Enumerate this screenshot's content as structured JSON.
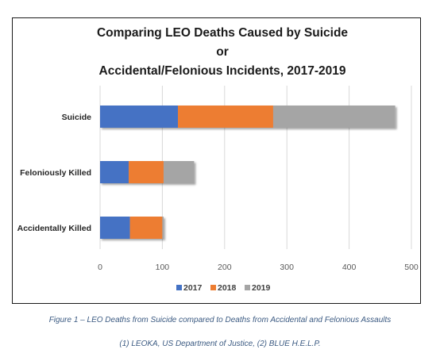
{
  "chart_data": {
    "type": "bar",
    "orientation": "horizontal",
    "stacked": true,
    "title_line1": "Comparing LEO Deaths Caused by Suicide or",
    "title_line2": "Accidental/Felonious Incidents, 2017-2019",
    "categories": [
      "Suicide",
      "Feloniously Killed",
      "Accidentally Killed"
    ],
    "series": [
      {
        "name": "2017",
        "color": "#4472c4",
        "values": [
          125,
          46,
          48
        ]
      },
      {
        "name": "2018",
        "color": "#ed7d31",
        "values": [
          153,
          56,
          52
        ]
      },
      {
        "name": "2019",
        "color": "#a5a5a5",
        "values": [
          196,
          49,
          2
        ]
      }
    ],
    "xlim": [
      0,
      500
    ],
    "xticks": [
      0,
      100,
      200,
      300,
      400,
      500
    ],
    "xgrid": true,
    "legend_position": "bottom"
  },
  "captions": {
    "figure": "Figure 1 – LEO Deaths from Suicide compared to Deaths from Accidental and Felonious Assaults",
    "sources": "(1) LEOKA, US Department of Justice, (2) BLUE H.E.L.P."
  }
}
